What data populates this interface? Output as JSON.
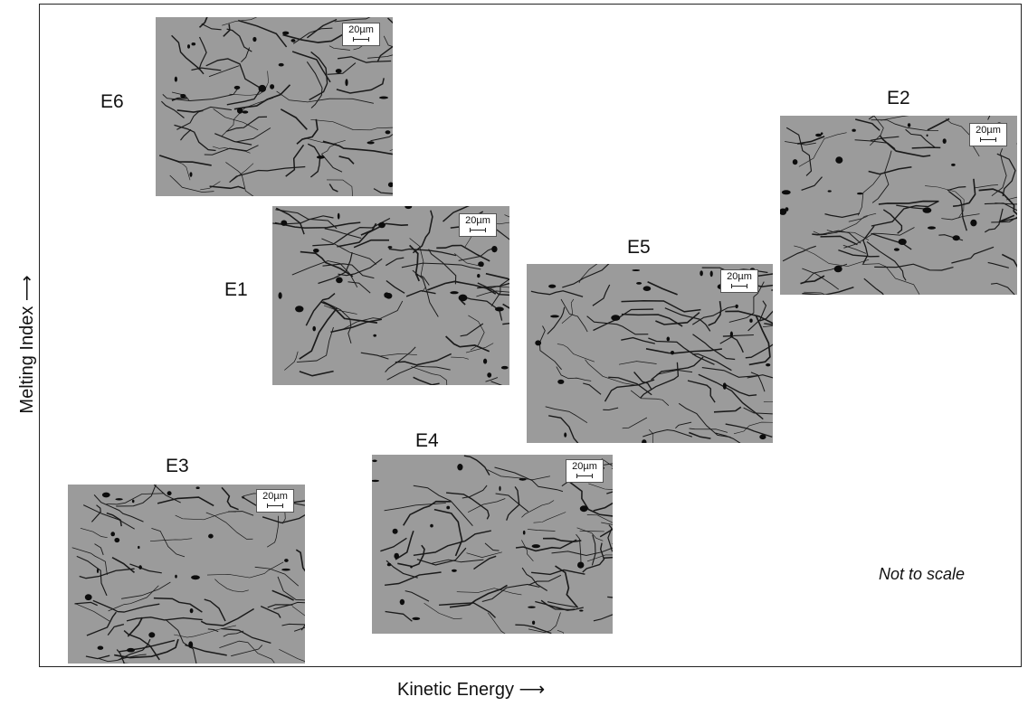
{
  "xaxis_label": "Kinetic Energy ⟶",
  "yaxis_label": "Melting Index ⟶",
  "note": "Not to scale",
  "scale_label": "20µm",
  "samples": [
    {
      "id": "E6",
      "label": "E6"
    },
    {
      "id": "E1",
      "label": "E1"
    },
    {
      "id": "E2",
      "label": "E2"
    },
    {
      "id": "E5",
      "label": "E5"
    },
    {
      "id": "E3",
      "label": "E3"
    },
    {
      "id": "E4",
      "label": "E4"
    }
  ]
}
